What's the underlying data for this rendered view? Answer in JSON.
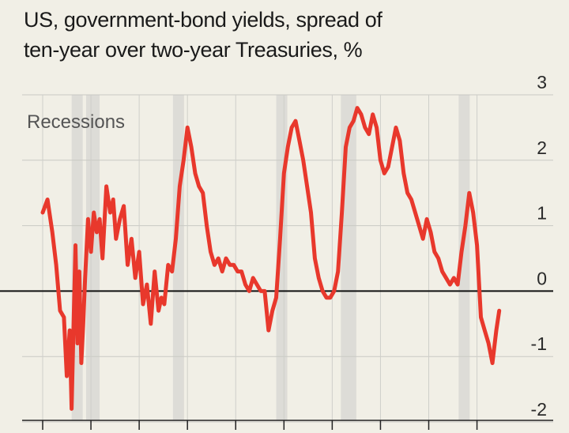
{
  "title_lines": [
    "US, government-bond yields, spread of",
    "ten-year over two-year Treasuries, %"
  ],
  "chart_data": {
    "type": "line",
    "title": "US, government-bond yields, spread of ten-year over two-year Treasuries, %",
    "annotation": "Recessions",
    "ylim": [
      -2,
      3
    ],
    "y_ticks": [
      "3",
      "2",
      "1",
      "0",
      "-1",
      "-2"
    ],
    "y_tick_values": [
      3,
      2,
      1,
      0,
      -1,
      -2
    ],
    "x_range": [
      1977,
      2024
    ],
    "x_ticks": [
      1977,
      1982,
      1987,
      1992,
      1997,
      2002,
      2007,
      2012,
      2017,
      2022
    ],
    "x_tick_labels_visible": false,
    "grid": "horizontal and vertical",
    "line_color": "#e8382c",
    "recession_color": "#d6d6d2",
    "recessions": [
      [
        1980.0,
        1980.5
      ],
      [
        1981.5,
        1982.9
      ],
      [
        1990.5,
        1991.2
      ],
      [
        2001.2,
        2001.9
      ],
      [
        2007.9,
        2009.5
      ],
      [
        2020.1,
        2020.4
      ]
    ],
    "series": [
      {
        "x": [
          1977.0,
          1977.5,
          1978.0,
          1978.4,
          1978.8,
          1979.2,
          1979.5,
          1979.8,
          1980.0,
          1980.2,
          1980.4,
          1980.6,
          1980.8,
          1981.0,
          1981.2,
          1981.4,
          1981.7,
          1982.0,
          1982.3,
          1982.6,
          1982.9,
          1983.2,
          1983.6,
          1984.0,
          1984.3,
          1984.6,
          1985.0,
          1985.4,
          1985.8,
          1986.2,
          1986.6,
          1987.0,
          1987.4,
          1987.8,
          1988.2,
          1988.6,
          1989.0,
          1989.3,
          1989.6,
          1990.0,
          1990.4,
          1990.8,
          1991.2,
          1991.6,
          1992.0,
          1992.4,
          1992.8,
          1993.2,
          1993.6,
          1994.0,
          1994.4,
          1994.8,
          1995.2,
          1995.6,
          1996.0,
          1996.4,
          1996.8,
          1997.2,
          1997.6,
          1998.0,
          1998.4,
          1998.8,
          1999.2,
          1999.6,
          2000.0,
          2000.4,
          2000.8,
          2001.2,
          2001.6,
          2002.0,
          2002.4,
          2002.8,
          2003.2,
          2003.6,
          2004.0,
          2004.4,
          2004.8,
          2005.2,
          2005.6,
          2006.0,
          2006.4,
          2006.8,
          2007.2,
          2007.6,
          2008.0,
          2008.4,
          2008.8,
          2009.2,
          2009.6,
          2010.0,
          2010.4,
          2010.8,
          2011.2,
          2011.6,
          2012.0,
          2012.4,
          2012.8,
          2013.2,
          2013.6,
          2014.0,
          2014.4,
          2014.8,
          2015.2,
          2015.6,
          2016.0,
          2016.4,
          2016.8,
          2017.2,
          2017.6,
          2018.0,
          2018.4,
          2018.8,
          2019.2,
          2019.6,
          2020.0,
          2020.4,
          2020.8,
          2021.2,
          2021.6,
          2022.0,
          2022.4,
          2022.8,
          2023.2,
          2023.6,
          2024.0,
          2024.3
        ],
        "y": [
          1.2,
          1.4,
          0.9,
          0.4,
          -0.3,
          -0.4,
          -1.3,
          -0.6,
          -1.8,
          -0.5,
          0.7,
          -0.8,
          0.3,
          -1.1,
          -0.5,
          0.2,
          1.1,
          0.6,
          1.2,
          0.9,
          1.1,
          0.5,
          1.6,
          1.2,
          1.4,
          0.8,
          1.1,
          1.3,
          0.4,
          0.8,
          0.2,
          0.6,
          -0.2,
          0.1,
          -0.5,
          0.3,
          -0.3,
          -0.1,
          -0.2,
          0.4,
          0.3,
          0.8,
          1.6,
          2.0,
          2.5,
          2.2,
          1.8,
          1.6,
          1.5,
          1.0,
          0.6,
          0.4,
          0.5,
          0.3,
          0.5,
          0.4,
          0.4,
          0.3,
          0.3,
          0.1,
          0.0,
          0.2,
          0.1,
          0.0,
          0.0,
          -0.6,
          -0.3,
          -0.1,
          0.8,
          1.8,
          2.2,
          2.5,
          2.6,
          2.3,
          2.0,
          1.6,
          1.2,
          0.5,
          0.2,
          0.0,
          -0.1,
          -0.1,
          0.0,
          0.3,
          1.2,
          2.2,
          2.5,
          2.6,
          2.8,
          2.7,
          2.5,
          2.4,
          2.7,
          2.5,
          2.0,
          1.8,
          1.9,
          2.2,
          2.5,
          2.3,
          1.8,
          1.5,
          1.4,
          1.2,
          1.0,
          0.8,
          1.1,
          0.9,
          0.6,
          0.5,
          0.3,
          0.2,
          0.1,
          0.2,
          0.1,
          0.6,
          1.0,
          1.5,
          1.2,
          0.7,
          -0.4,
          -0.6,
          -0.8,
          -1.1,
          -0.6,
          -0.3
        ]
      }
    ]
  }
}
